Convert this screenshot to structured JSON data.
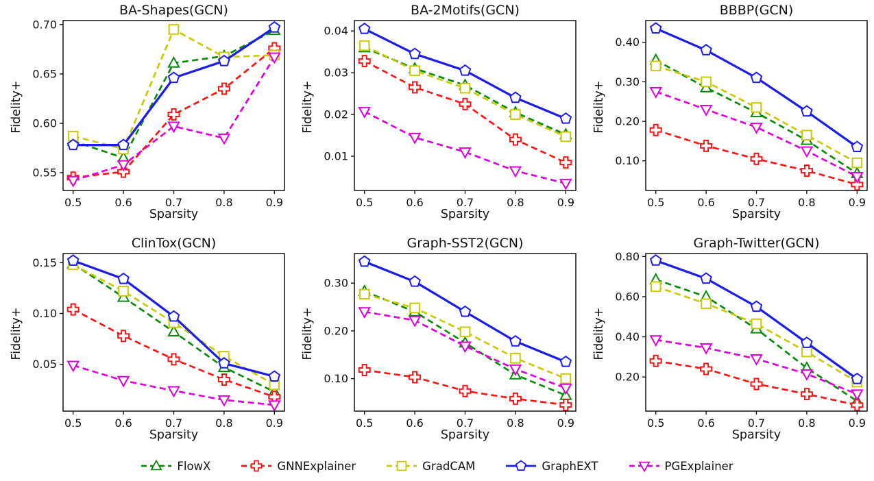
{
  "legend": {
    "items": [
      {
        "label": "FlowX",
        "color": "#0a8a0a",
        "marker": "triangle-up",
        "dash": true
      },
      {
        "label": "GNNExplainer",
        "color": "#fb1414",
        "marker": "plus",
        "dash": true
      },
      {
        "label": "GradCAM",
        "color": "#c9c906",
        "marker": "square",
        "dash": true
      },
      {
        "label": "GraphEXT",
        "color": "#1d1de8",
        "marker": "pentagon",
        "dash": false
      },
      {
        "label": "PGExplainer",
        "color": "#dc00dc",
        "marker": "triangle-down",
        "dash": true
      }
    ]
  },
  "chart_data": {
    "type": "line",
    "xlabel": "Sparsity",
    "ylabel": "Fidelity+",
    "x": [
      0.5,
      0.6,
      0.7,
      0.8,
      0.9
    ],
    "xlim": [
      0.48,
      0.92
    ],
    "xticklabels": [
      "0.5",
      "0.6",
      "0.7",
      "0.8",
      "0.9"
    ],
    "legend_position": "bottom",
    "grid": false,
    "charts": [
      {
        "title": "BA-Shapes(GCN)",
        "ylim": [
          0.532,
          0.704
        ],
        "yticks": [
          {
            "v": 0.55,
            "label": "0.55"
          },
          {
            "v": 0.6,
            "label": "0.60"
          },
          {
            "v": 0.65,
            "label": "0.65"
          },
          {
            "v": 0.7,
            "label": "0.70"
          }
        ],
        "series": [
          {
            "name": "FlowX",
            "values": [
              0.582,
              0.565,
              0.661,
              0.668,
              0.694
            ]
          },
          {
            "name": "GNNExplainer",
            "values": [
              0.545,
              0.551,
              0.609,
              0.635,
              0.676
            ]
          },
          {
            "name": "GradCAM",
            "values": [
              0.587,
              0.574,
              0.695,
              0.667,
              0.669
            ]
          },
          {
            "name": "GraphEXT",
            "values": [
              0.578,
              0.578,
              0.646,
              0.663,
              0.697
            ]
          },
          {
            "name": "PGExplainer",
            "values": [
              0.542,
              0.558,
              0.597,
              0.585,
              0.667
            ]
          }
        ]
      },
      {
        "title": "BA-2Motifs(GCN)",
        "ylim": [
          0.0018,
          0.0425
        ],
        "yticks": [
          {
            "v": 0.01,
            "label": "0.01"
          },
          {
            "v": 0.02,
            "label": "0.02"
          },
          {
            "v": 0.03,
            "label": "0.03"
          },
          {
            "v": 0.04,
            "label": "0.04"
          }
        ],
        "series": [
          {
            "name": "FlowX",
            "values": [
              0.036,
              0.031,
              0.027,
              0.0205,
              0.0152
            ]
          },
          {
            "name": "GNNExplainer",
            "values": [
              0.0328,
              0.0265,
              0.0225,
              0.014,
              0.0085
            ]
          },
          {
            "name": "GradCAM",
            "values": [
              0.0365,
              0.0305,
              0.0263,
              0.02,
              0.0147
            ]
          },
          {
            "name": "GraphEXT",
            "values": [
              0.0405,
              0.0345,
              0.0305,
              0.024,
              0.019
            ]
          },
          {
            "name": "PGExplainer",
            "values": [
              0.0207,
              0.0145,
              0.011,
              0.0065,
              0.0035
            ]
          }
        ]
      },
      {
        "title": "BBBP(GCN)",
        "ylim": [
          0.025,
          0.455
        ],
        "yticks": [
          {
            "v": 0.1,
            "label": "0.10"
          },
          {
            "v": 0.2,
            "label": "0.20"
          },
          {
            "v": 0.3,
            "label": "0.30"
          },
          {
            "v": 0.4,
            "label": "0.40"
          }
        ],
        "series": [
          {
            "name": "FlowX",
            "values": [
              0.355,
              0.285,
              0.222,
              0.152,
              0.068
            ]
          },
          {
            "name": "GNNExplainer",
            "values": [
              0.178,
              0.138,
              0.105,
              0.075,
              0.04
            ]
          },
          {
            "name": "GradCAM",
            "values": [
              0.34,
              0.3,
              0.235,
              0.165,
              0.095
            ]
          },
          {
            "name": "GraphEXT",
            "values": [
              0.435,
              0.38,
              0.31,
              0.225,
              0.135
            ]
          },
          {
            "name": "PGExplainer",
            "values": [
              0.275,
              0.23,
              0.185,
              0.125,
              0.06
            ]
          }
        ]
      },
      {
        "title": "ClinTox(GCN)",
        "ylim": [
          0.004,
          0.159
        ],
        "yticks": [
          {
            "v": 0.05,
            "label": "0.05"
          },
          {
            "v": 0.1,
            "label": "0.10"
          },
          {
            "v": 0.15,
            "label": "0.15"
          }
        ],
        "series": [
          {
            "name": "FlowX",
            "values": [
              0.149,
              0.116,
              0.082,
              0.047,
              0.023
            ]
          },
          {
            "name": "GNNExplainer",
            "values": [
              0.104,
              0.078,
              0.055,
              0.035,
              0.018
            ]
          },
          {
            "name": "GradCAM",
            "values": [
              0.148,
              0.122,
              0.091,
              0.058,
              0.03
            ]
          },
          {
            "name": "GraphEXT",
            "values": [
              0.152,
              0.134,
              0.097,
              0.051,
              0.038
            ]
          },
          {
            "name": "PGExplainer",
            "values": [
              0.049,
              0.034,
              0.024,
              0.015,
              0.01
            ]
          }
        ]
      },
      {
        "title": "Graph-SST2(GCN)",
        "ylim": [
          0.032,
          0.362
        ],
        "yticks": [
          {
            "v": 0.1,
            "label": "0.10"
          },
          {
            "v": 0.2,
            "label": "0.20"
          },
          {
            "v": 0.3,
            "label": "0.30"
          }
        ],
        "series": [
          {
            "name": "FlowX",
            "values": [
              0.283,
              0.24,
              0.175,
              0.108,
              0.065
            ]
          },
          {
            "name": "GNNExplainer",
            "values": [
              0.118,
              0.103,
              0.074,
              0.058,
              0.045
            ]
          },
          {
            "name": "GradCAM",
            "values": [
              0.277,
              0.248,
              0.198,
              0.143,
              0.1
            ]
          },
          {
            "name": "GraphEXT",
            "values": [
              0.345,
              0.303,
              0.24,
              0.178,
              0.135
            ]
          },
          {
            "name": "PGExplainer",
            "values": [
              0.24,
              0.222,
              0.168,
              0.12,
              0.08
            ]
          }
        ]
      },
      {
        "title": "Graph-Twitter(GCN)",
        "ylim": [
          0.03,
          0.815
        ],
        "yticks": [
          {
            "v": 0.2,
            "label": "0.20"
          },
          {
            "v": 0.4,
            "label": "0.40"
          },
          {
            "v": 0.6,
            "label": "0.60"
          },
          {
            "v": 0.8,
            "label": "0.80"
          }
        ],
        "series": [
          {
            "name": "FlowX",
            "values": [
              0.685,
              0.6,
              0.44,
              0.245,
              0.08
            ]
          },
          {
            "name": "GNNExplainer",
            "values": [
              0.28,
              0.24,
              0.165,
              0.115,
              0.06
            ]
          },
          {
            "name": "GradCAM",
            "values": [
              0.65,
              0.565,
              0.465,
              0.325,
              0.175
            ]
          },
          {
            "name": "GraphEXT",
            "values": [
              0.78,
              0.69,
              0.55,
              0.37,
              0.19
            ]
          },
          {
            "name": "PGExplainer",
            "values": [
              0.385,
              0.345,
              0.29,
              0.215,
              0.115
            ]
          }
        ]
      }
    ]
  }
}
